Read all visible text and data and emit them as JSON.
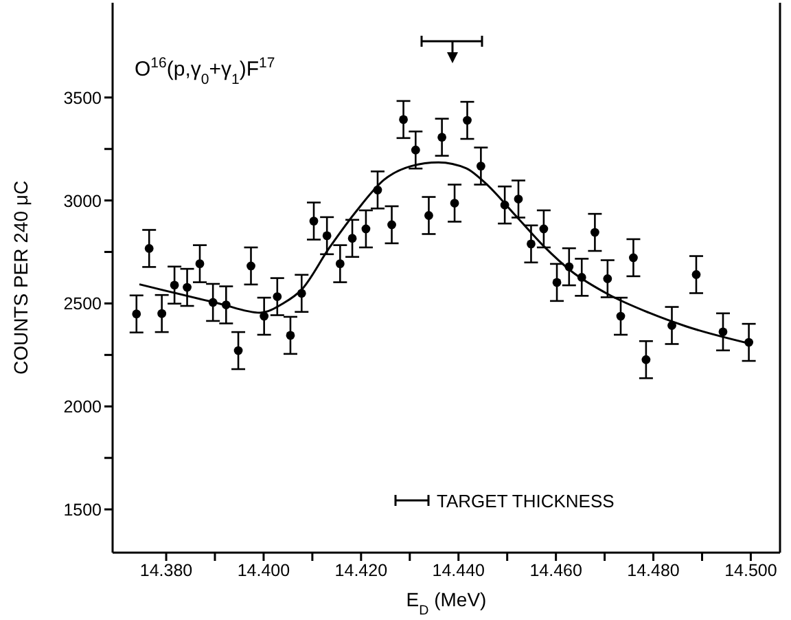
{
  "chart_data": {
    "type": "scatter",
    "xlabel": "E$_{D}$ (MeV)",
    "ylabel": "COUNTS PER 240 μC",
    "annotations": [
      "O$^{16}$(p,γ$_{0}$+γ$_{1}$)F$^{17}$",
      "TARGET THICKNESS"
    ],
    "xlim": [
      14.369,
      14.506
    ],
    "ylim": [
      1290,
      3960
    ],
    "xticks": [
      {
        "value": 14.38,
        "label": "14.380"
      },
      {
        "value": 14.39,
        "label": null
      },
      {
        "value": 14.4,
        "label": "14.400"
      },
      {
        "value": 14.41,
        "label": null
      },
      {
        "value": 14.42,
        "label": "14.420"
      },
      {
        "value": 14.43,
        "label": null
      },
      {
        "value": 14.44,
        "label": "14.440"
      },
      {
        "value": 14.45,
        "label": null
      },
      {
        "value": 14.46,
        "label": "14.460"
      },
      {
        "value": 14.47,
        "label": null
      },
      {
        "value": 14.48,
        "label": "14.480"
      },
      {
        "value": 14.49,
        "label": null
      },
      {
        "value": 14.5,
        "label": "14.500"
      }
    ],
    "yticks": [
      1500,
      {
        "value": 1750,
        "label": null
      },
      2000,
      {
        "value": 2250,
        "label": null
      },
      2500,
      {
        "value": 2750,
        "label": null
      },
      3000,
      {
        "value": 3250,
        "label": null
      },
      3500
    ],
    "series": [
      {
        "color": "#000000",
        "marker": "circle",
        "x": [
          14.3739,
          14.3765,
          14.3791,
          14.3817,
          14.3843,
          14.3869,
          14.3896,
          14.3923,
          14.3948,
          14.3974,
          14.4001,
          14.4028,
          14.4055,
          14.4078,
          14.4103,
          14.413,
          14.4157,
          14.4182,
          14.421,
          14.4234,
          14.4263,
          14.4287,
          14.4312,
          14.4339,
          14.4366,
          14.4392,
          14.4418,
          14.4446,
          14.4495,
          14.4523,
          14.4549,
          14.4575,
          14.4602,
          14.4627,
          14.4653,
          14.468,
          14.4706,
          14.4733,
          14.4759,
          14.4785,
          14.4838,
          14.4888,
          14.4943,
          14.4996
        ],
        "values": [
          2449,
          2767,
          2451,
          2589,
          2578,
          2693,
          2505,
          2493,
          2271,
          2682,
          2438,
          2533,
          2345,
          2549,
          2900,
          2829,
          2693,
          2816,
          2862,
          3051,
          2882,
          3393,
          3245,
          2927,
          3307,
          2987,
          3389,
          3167,
          2978,
          3007,
          2789,
          2862,
          2602,
          2678,
          2627,
          2845,
          2620,
          2438,
          2722,
          2227,
          2393,
          2640,
          2362,
          2311
        ],
        "errors": [
          90,
          90,
          90,
          90,
          90,
          90,
          90,
          90,
          90,
          90,
          90,
          90,
          90,
          90,
          90,
          90,
          90,
          90,
          90,
          90,
          90,
          90,
          90,
          90,
          90,
          90,
          90,
          90,
          90,
          90,
          90,
          90,
          90,
          90,
          90,
          90,
          90,
          90,
          90,
          90,
          90,
          90,
          90,
          90
        ]
      },
      {
        "type": "line",
        "color": "#000000",
        "x": [
          14.3745,
          14.3908,
          14.3993,
          14.404,
          14.4078,
          14.4134,
          14.419,
          14.4247,
          14.4303,
          14.4359,
          14.4416,
          14.4453,
          14.4519,
          14.4575,
          14.4632,
          14.4707,
          14.4791,
          14.4867,
          14.4998
        ],
        "values": [
          2593,
          2500,
          2455,
          2500,
          2567,
          2767,
          2947,
          3100,
          3167,
          3185,
          3156,
          3089,
          2922,
          2778,
          2656,
          2545,
          2455,
          2389,
          2305
        ]
      }
    ]
  }
}
